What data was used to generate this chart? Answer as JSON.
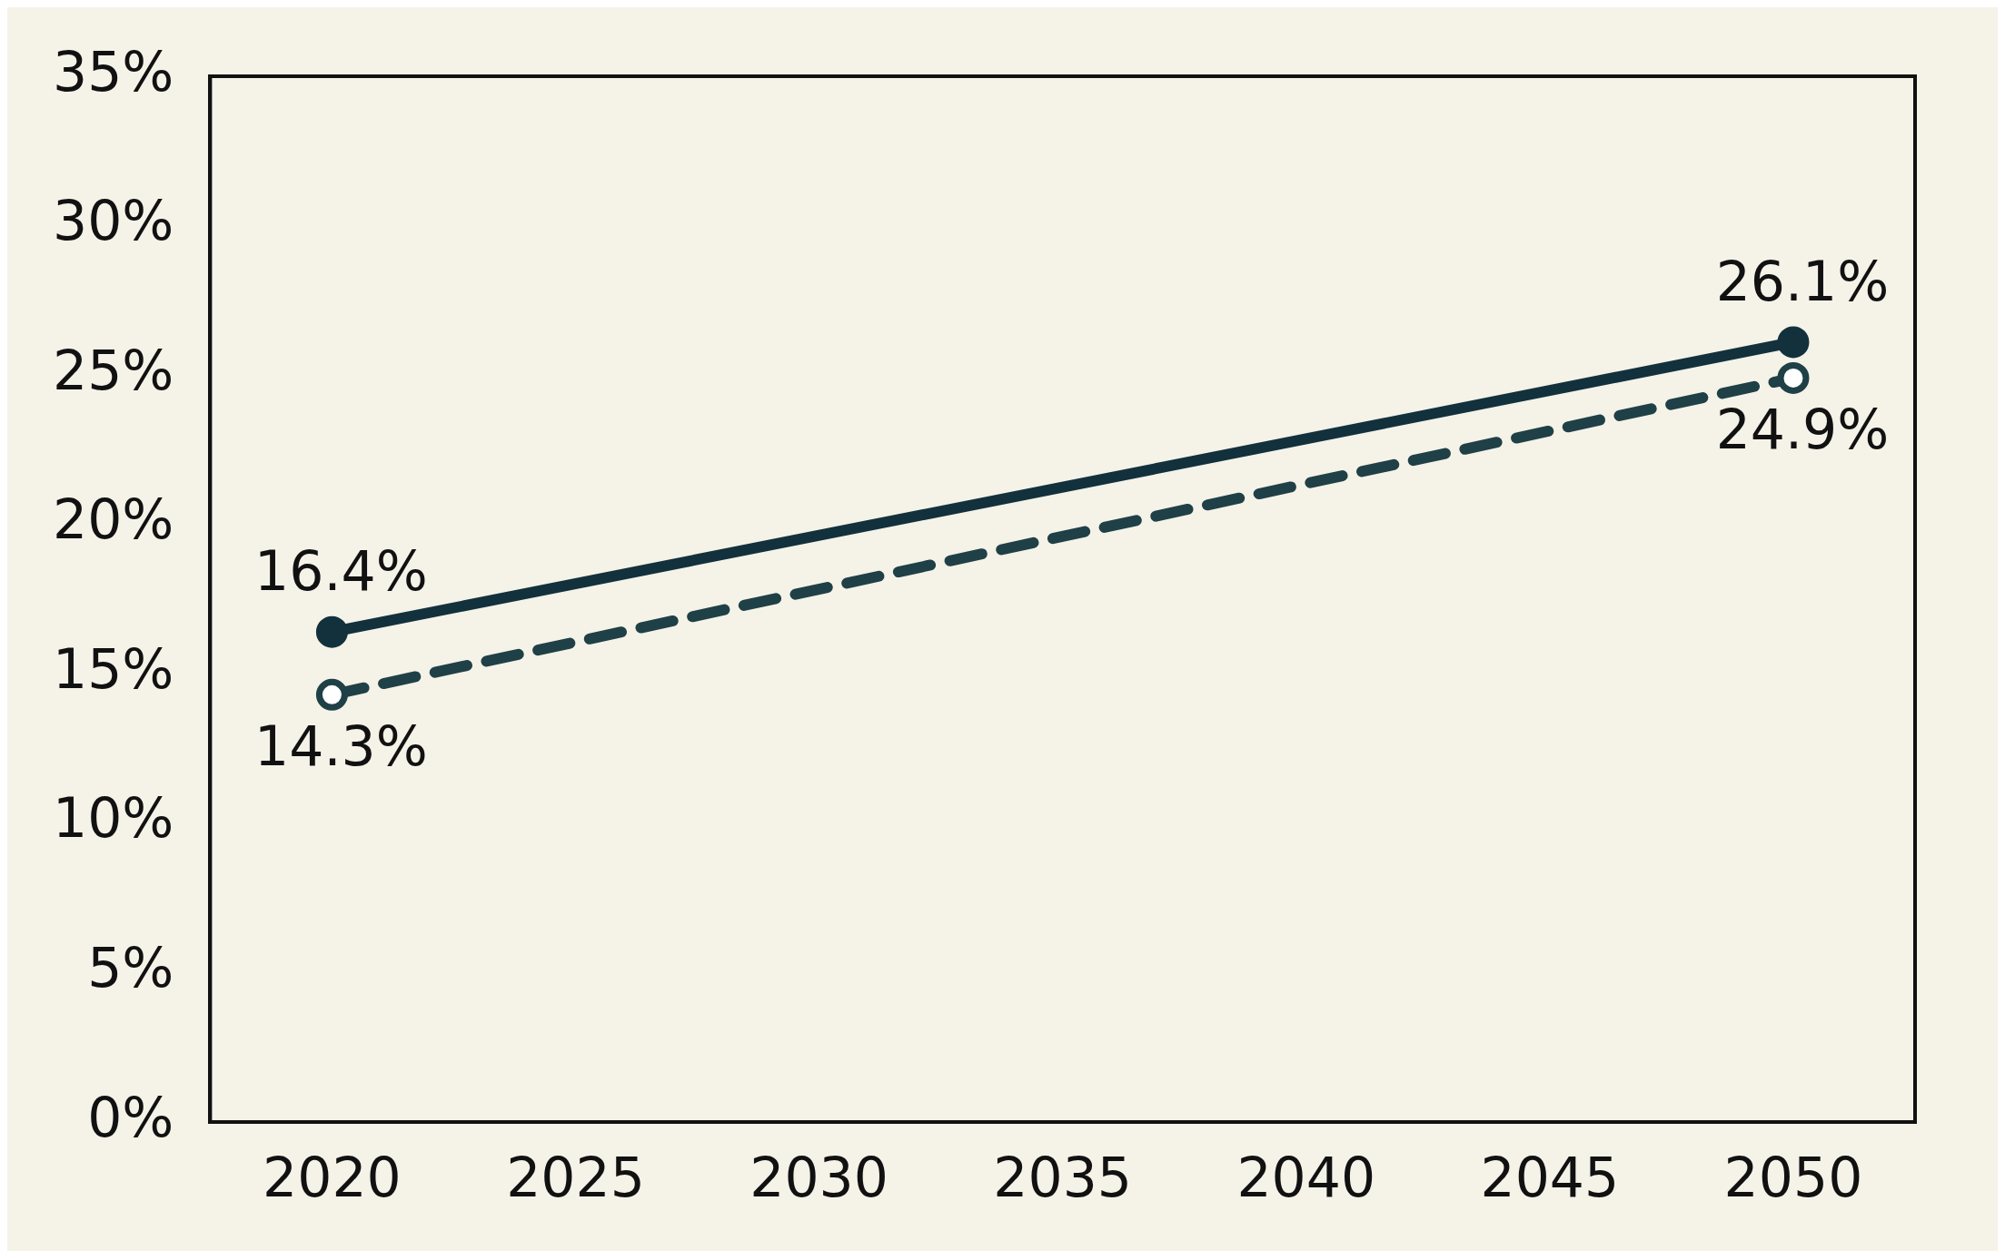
{
  "chart_data": {
    "type": "line",
    "x": [
      2020,
      2050
    ],
    "series": [
      {
        "color": "#12313d",
        "values": [
          16.4,
          26.1
        ],
        "value_labels": [
          "16.4%",
          "26.1%"
        ],
        "line_style": "solid"
      },
      {
        "color": "#1f4046",
        "values": [
          14.3,
          24.9
        ],
        "value_labels": [
          "14.3%",
          "24.9%"
        ],
        "line_style": "dashed"
      }
    ],
    "xlim": [
      2017.5,
      2052.5
    ],
    "xticks": [
      2020,
      2025,
      2030,
      2035,
      2040,
      2045,
      2050
    ],
    "ylim": [
      0,
      35
    ],
    "yticks": [
      {
        "value": 0,
        "label": "0%"
      },
      {
        "value": 5,
        "label": "5%"
      },
      {
        "value": 10,
        "label": "10%"
      },
      {
        "value": 15,
        "label": "15%"
      },
      {
        "value": 20,
        "label": "20%"
      },
      {
        "value": 25,
        "label": "25%"
      },
      {
        "value": 30,
        "label": "30%"
      },
      {
        "value": 35,
        "label": "35%"
      }
    ],
    "grid": false,
    "legend": false,
    "marker": "circle"
  }
}
